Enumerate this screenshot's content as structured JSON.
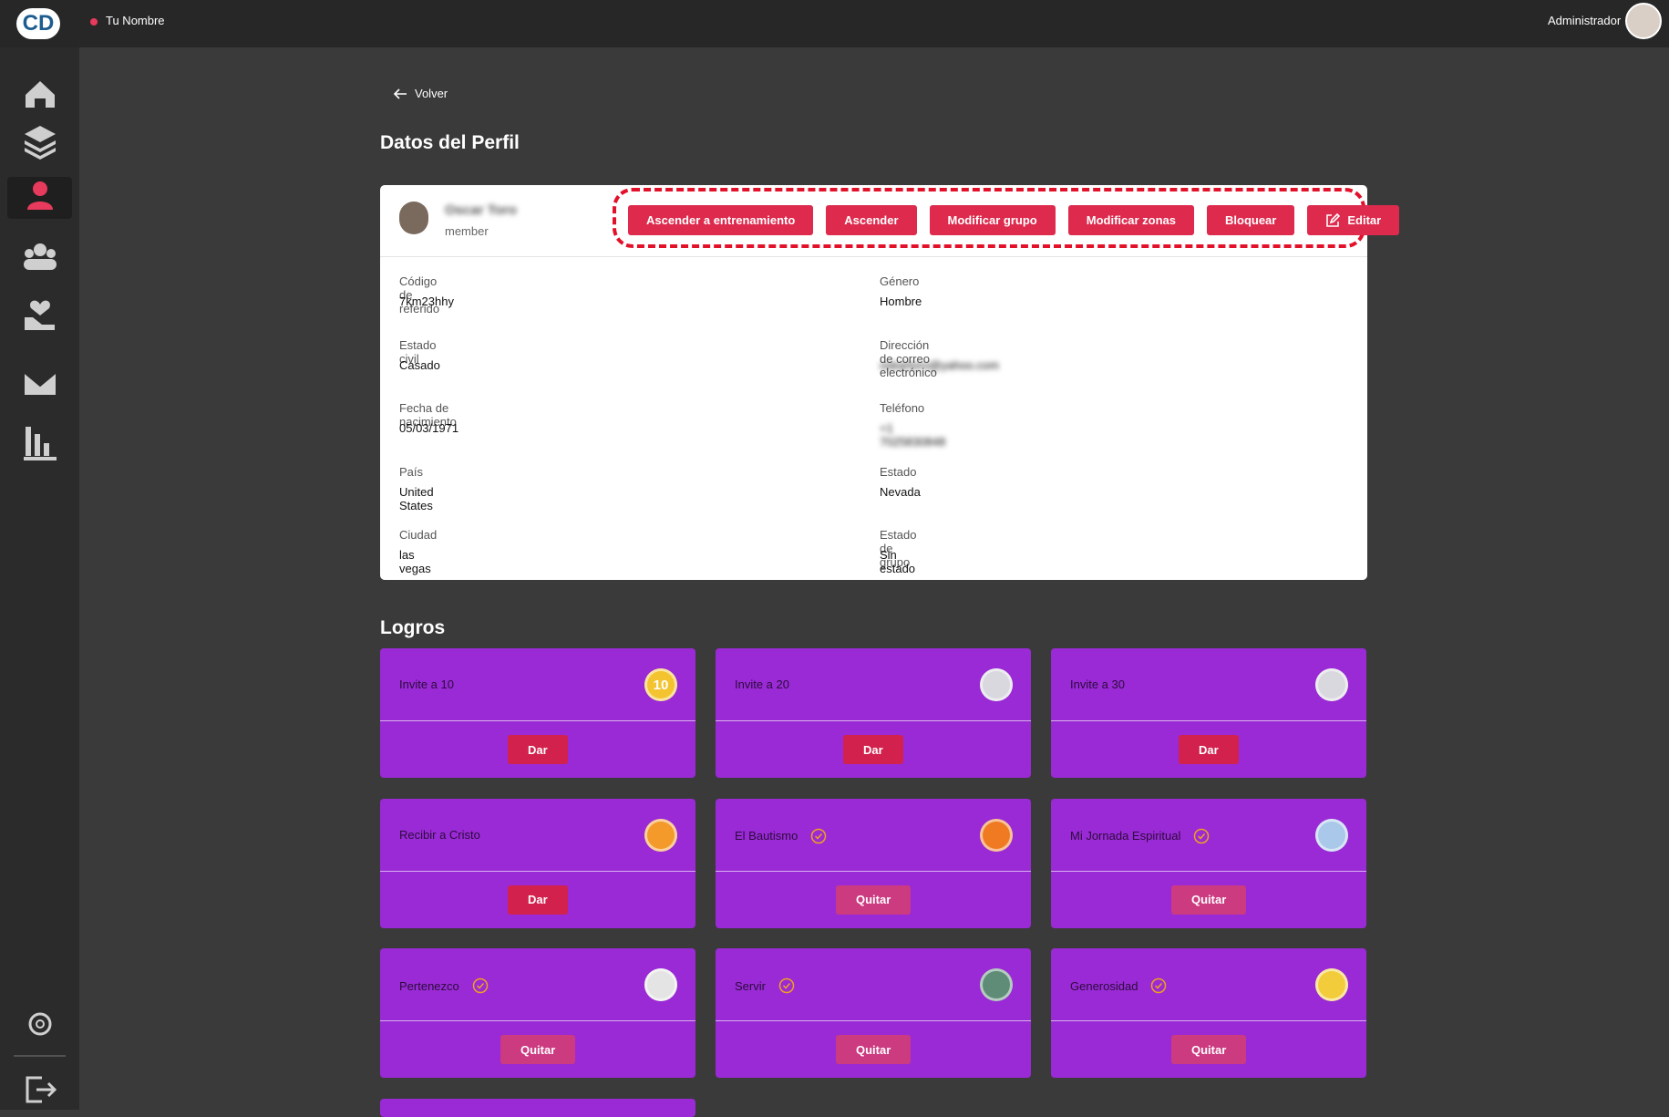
{
  "top_bar": {
    "logo": "CD",
    "user_name": "Tu Nombre",
    "role": "Administrador"
  },
  "back": "Volver",
  "title": "Datos del Perfil",
  "profile": {
    "name": "Oscar Toro",
    "role": "member",
    "actions": [
      "Ascender a entrenamiento",
      "Ascender",
      "Modificar grupo",
      "Modificar zonas",
      "Bloquear",
      "Editar"
    ],
    "fields": [
      {
        "label": "Código de referido",
        "value": "7km23hhy"
      },
      {
        "label": "Género",
        "value": "Hombre"
      },
      {
        "label": "Estado civil",
        "value": "Casado"
      },
      {
        "label": "Dirección de correo electrónico",
        "value": "oskartoro@yahoo.com",
        "blurred": true
      },
      {
        "label": "Fecha de nacimiento",
        "value": "05/03/1971"
      },
      {
        "label": "Teléfono",
        "value": "+1 7025830848",
        "blurred": true
      },
      {
        "label": "País",
        "value": "United States"
      },
      {
        "label": "Estado",
        "value": "Nevada"
      },
      {
        "label": "Ciudad",
        "value": "las vegas"
      },
      {
        "label": "Estado de grupo",
        "value": "Sin estado"
      }
    ]
  },
  "achievements": {
    "title": "Logros",
    "items": [
      {
        "name": "Invite a 10",
        "action": "Dar",
        "earned": false,
        "medal": "#f4c430",
        "medal_text": "10"
      },
      {
        "name": "Invite a 20",
        "action": "Dar",
        "earned": false,
        "medal": "#d8d8de"
      },
      {
        "name": "Invite a 30",
        "action": "Dar",
        "earned": false,
        "medal": "#d8d8de"
      },
      {
        "name": "Recibir a Cristo",
        "action": "Dar",
        "earned": false,
        "medal": "#f39a2a"
      },
      {
        "name": "El Bautismo",
        "action": "Quitar",
        "earned": true,
        "medal": "#f07a22"
      },
      {
        "name": "Mi Jornada Espiritual",
        "action": "Quitar",
        "earned": true,
        "medal": "#a9c8ea"
      },
      {
        "name": "Pertenezco",
        "action": "Quitar",
        "earned": true,
        "medal": "#e4e4e4"
      },
      {
        "name": "Servir",
        "action": "Quitar",
        "earned": true,
        "medal": "#5e8c76"
      },
      {
        "name": "Generosidad",
        "action": "Quitar",
        "earned": true,
        "medal": "#f2cc3a"
      }
    ]
  }
}
